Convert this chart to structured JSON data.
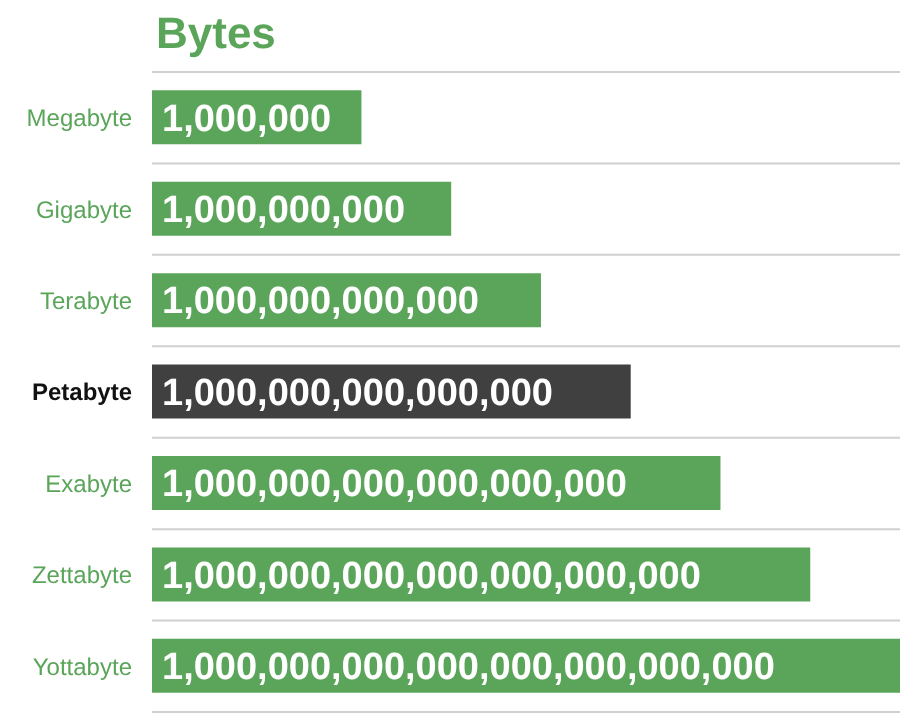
{
  "chart_data": {
    "type": "bar",
    "orientation": "horizontal",
    "title": "Bytes",
    "log": "x",
    "xlim": [
      0.1,
      1e+24
    ],
    "tick_labels": "y",
    "grid": "y",
    "categories": [
      "Megabyte",
      "Gigabyte",
      "Terabyte",
      "Petabyte",
      "Exabyte",
      "Zettabyte",
      "Yottabyte"
    ],
    "values": [
      1000000.0,
      1000000000.0,
      1000000000000.0,
      1000000000000000.0,
      1e+18,
      1e+21,
      1e+24
    ],
    "value_labels": [
      "1,000,000",
      "1,000,000,000",
      "1,000,000,000,000",
      "1,000,000,000,000,000",
      "1,000,000,000,000,000,000",
      "1,000,000,000,000,000,000,000",
      "1,000,000,000,000,000,000,000,000"
    ],
    "colors": [
      "#5aa55a",
      "#5aa55a",
      "#5aa55a",
      "#404040",
      "#5aa55a",
      "#5aa55a",
      "#5aa55a"
    ]
  }
}
